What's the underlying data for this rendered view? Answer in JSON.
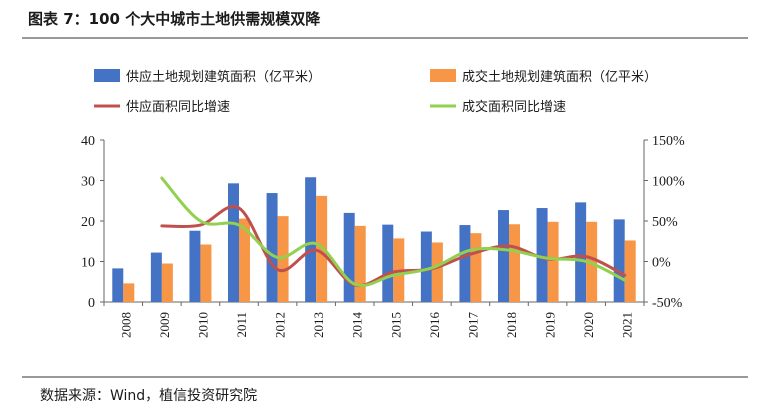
{
  "title": "图表 7：100 个大中城市土地供需规模双降",
  "source": "数据来源：Wind，植信投资研究院",
  "colors": {
    "bar_supply": "#4472C4",
    "bar_deal": "#F79646",
    "line_supply": "#C0504D",
    "line_deal": "#92D050"
  },
  "chart_data": {
    "type": "bar",
    "categories": [
      "2008",
      "2009",
      "2010",
      "2011",
      "2012",
      "2013",
      "2014",
      "2015",
      "2016",
      "2017",
      "2018",
      "2019",
      "2020",
      "2021"
    ],
    "series": [
      {
        "name": "供应土地规划建筑面积（亿平米）",
        "kind": "bar",
        "axis": "left",
        "values": [
          8.3,
          12.2,
          17.6,
          29.3,
          26.9,
          30.8,
          22.0,
          19.1,
          17.4,
          19.0,
          22.7,
          23.2,
          24.6,
          20.4
        ]
      },
      {
        "name": "成交土地规划建筑面积（亿平米）",
        "kind": "bar",
        "axis": "left",
        "values": [
          4.6,
          9.5,
          14.2,
          20.6,
          21.2,
          26.2,
          18.8,
          15.7,
          14.7,
          17.0,
          19.2,
          19.8,
          19.8,
          15.2
        ]
      },
      {
        "name": "供应面积同比增速",
        "kind": "line",
        "axis": "right",
        "values": [
          null,
          44,
          45,
          66,
          -10,
          14,
          -29,
          -13,
          -9,
          9,
          19,
          3,
          6,
          -17
        ]
      },
      {
        "name": "成交面积同比增速",
        "kind": "line",
        "axis": "right",
        "values": [
          null,
          103,
          50,
          45,
          5,
          22,
          -28,
          -17,
          -8,
          14,
          14,
          4,
          0,
          -23
        ]
      }
    ],
    "left_axis": {
      "min": 0,
      "max": 40,
      "ticks": [
        "0",
        "10",
        "20",
        "30",
        "40"
      ]
    },
    "right_axis": {
      "min": -50,
      "max": 150,
      "ticks": [
        "-50%",
        "0%",
        "50%",
        "100%",
        "150%"
      ]
    },
    "legend_position": "top",
    "grid": false
  }
}
